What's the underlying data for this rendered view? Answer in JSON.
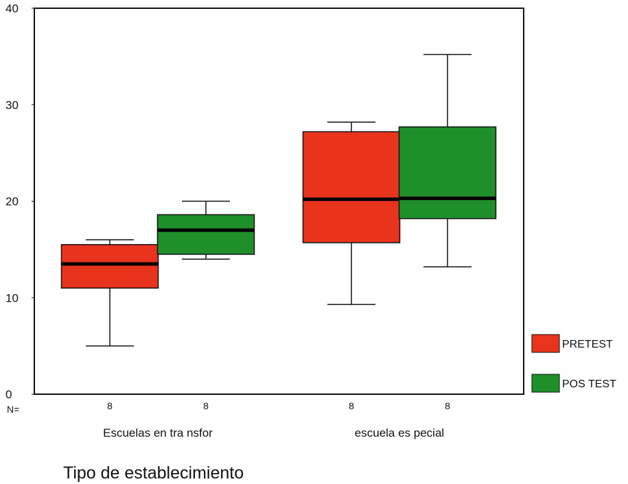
{
  "chart_data": {
    "type": "boxplot",
    "xlabel": "Tipo de establecimiento",
    "ylabel": "",
    "ylim": [
      0,
      40
    ],
    "yticks": [
      "0",
      "10",
      "20",
      "30",
      "40"
    ],
    "n_label": "N=",
    "categories": [
      "Escuelas en tra nsfor",
      "escuela es pecial"
    ],
    "legend_position": "bottom-right",
    "series": [
      {
        "name": "PRETEST",
        "color": "#e8341c",
        "boxes": [
          {
            "min": 5,
            "q1": 11,
            "median": 13.5,
            "q3": 15.5,
            "max": 16,
            "n": "8"
          },
          {
            "min": 9.3,
            "q1": 15.7,
            "median": 20.2,
            "q3": 27.2,
            "max": 28.2,
            "n": "8"
          }
        ]
      },
      {
        "name": "POS TEST",
        "color": "#1f8f2a",
        "boxes": [
          {
            "min": 14,
            "q1": 14.5,
            "median": 17,
            "q3": 18.6,
            "max": 20,
            "n": "8"
          },
          {
            "min": 13.2,
            "q1": 18.2,
            "median": 20.3,
            "q3": 27.7,
            "max": 35.2,
            "n": "8"
          }
        ]
      }
    ]
  }
}
